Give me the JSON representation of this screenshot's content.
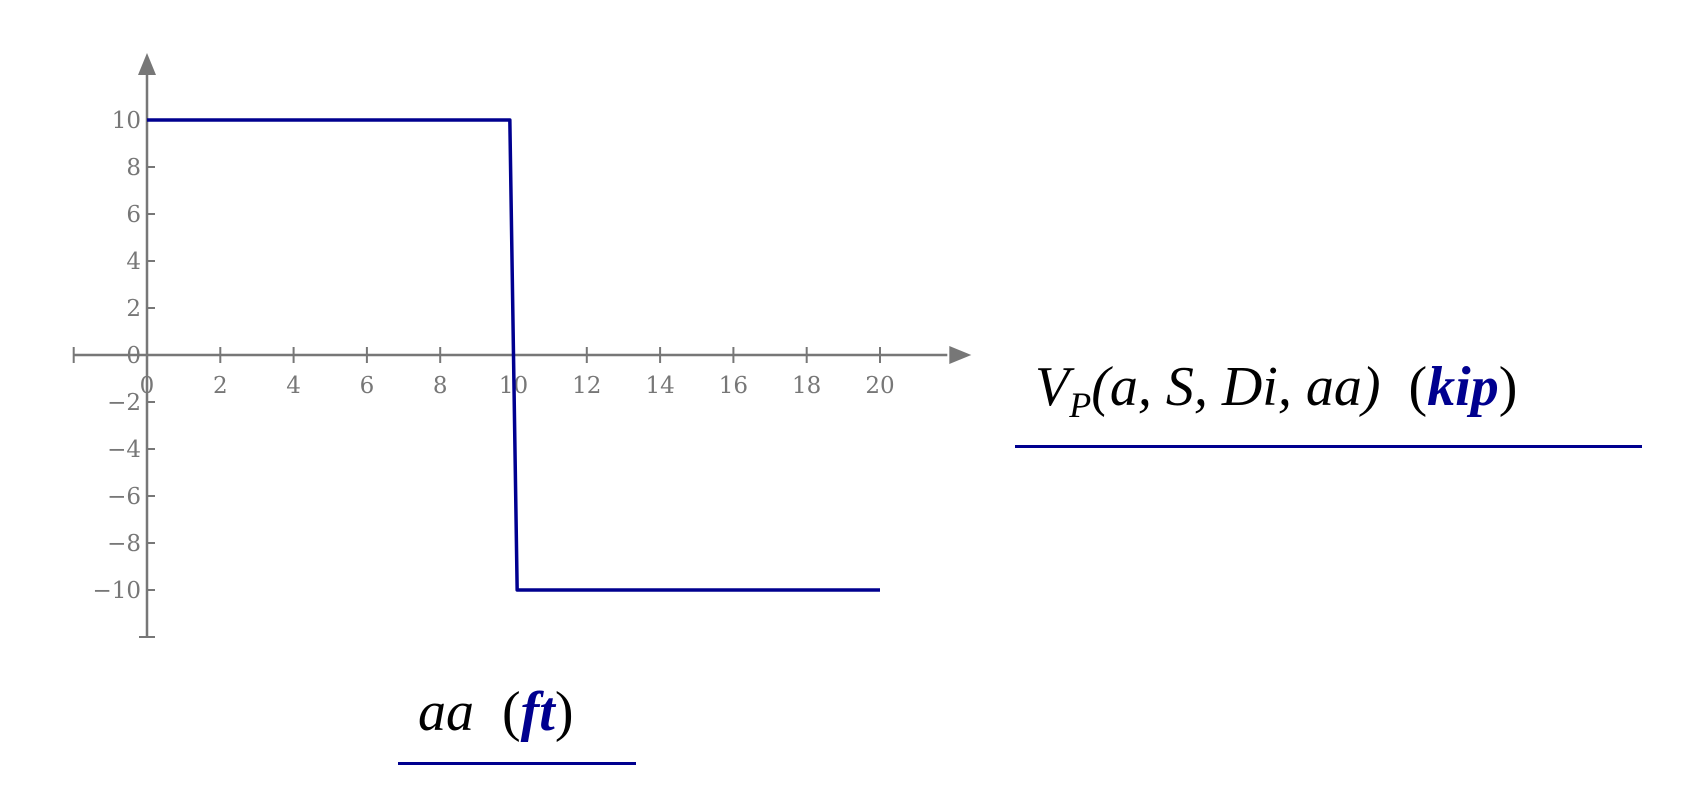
{
  "chart_data": {
    "type": "line",
    "xlabel": {
      "variable": "aa",
      "unit": "ft"
    },
    "ylabel": {
      "function": "V",
      "subscript": "P",
      "args": "(a, S, Di, aa)",
      "unit": "kip"
    },
    "xlim": [
      -2,
      22
    ],
    "ylim": [
      -12,
      12
    ],
    "x_ticks": [
      0,
      2,
      4,
      6,
      8,
      10,
      12,
      14,
      16,
      18,
      20
    ],
    "y_ticks": [
      10,
      8,
      6,
      4,
      2,
      0,
      -2,
      -4,
      -6,
      -8,
      -10
    ],
    "grid": false,
    "series": [
      {
        "x": [
          0,
          9.9,
          10.1,
          20
        ],
        "y": [
          10,
          10,
          -10,
          -10
        ],
        "color": "#00008f"
      }
    ],
    "axis_color": "#777777"
  }
}
